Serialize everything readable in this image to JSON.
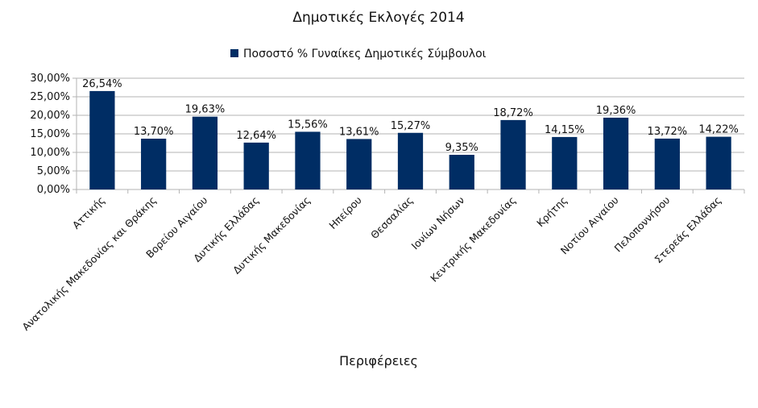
{
  "chart_data": {
    "type": "bar",
    "title": "Δημοτικές Εκλογές 2014",
    "xlabel": "Περιφέρειες",
    "ylabel": "",
    "ylim": [
      0,
      30
    ],
    "y_ticks": [
      "0,00%",
      "5,00%",
      "10,00%",
      "15,00%",
      "20,00%",
      "25,00%",
      "30,00%"
    ],
    "grid": true,
    "legend_position": "top",
    "categories": [
      "Αττικής",
      "Ανατολικής Μακεδονίας και Θράκης",
      "Βορείου Αιγαίου",
      "Δυτικής Ελλάδας",
      "Δυτικής Μακεδονίας",
      "Ηπείρου",
      "Θεσσαλίας",
      "Ιονίων Νήσων",
      "Κεντρικής Μακεδονίας",
      "Κρήτης",
      "Νοτίου Αιγαίου",
      "Πελοποννήσου",
      "Στερεάς Ελλάδας"
    ],
    "series": [
      {
        "name": "Ποσοστό % Γυναίκες Δημοτικές Σύμβουλοι",
        "color": "#002d64",
        "values": [
          26.54,
          13.7,
          19.63,
          12.64,
          15.56,
          13.61,
          15.27,
          9.35,
          18.72,
          14.15,
          19.36,
          13.72,
          14.22
        ],
        "labels": [
          "26,54%",
          "13,70%",
          "19,63%",
          "12,64%",
          "15,56%",
          "13,61%",
          "15,27%",
          "9,35%",
          "18,72%",
          "14,15%",
          "19,36%",
          "13,72%",
          "14,22%"
        ]
      }
    ],
    "colors": {
      "bar": "#002d64",
      "grid": "#b3b3b3",
      "axis": "#b3b3b3"
    }
  }
}
